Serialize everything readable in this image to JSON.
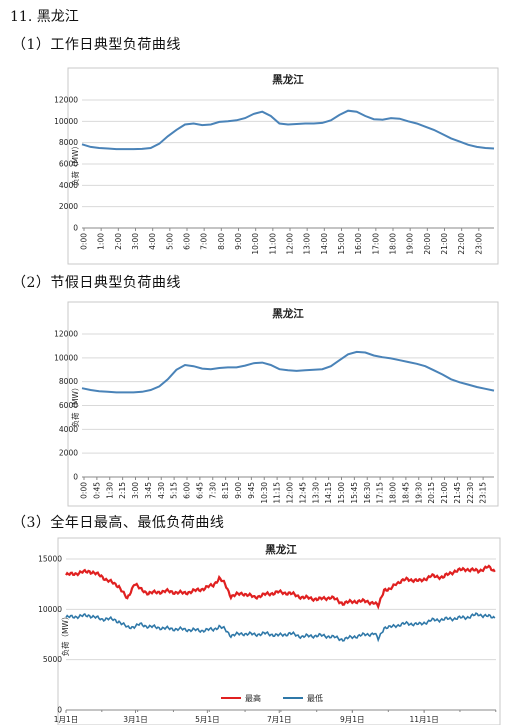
{
  "page": {
    "heading": "11. 黑龙江",
    "sections": [
      "（1）工作日典型负荷曲线",
      "（2）节假日典型负荷曲线",
      "（3）全年日最高、最低负荷曲线"
    ]
  },
  "chart_data": [
    {
      "type": "line",
      "title": "黑龙江",
      "ylabel": "负荷（MW）",
      "xlabel": "",
      "ylim": [
        0,
        12000
      ],
      "yticks": [
        0,
        2000,
        4000,
        6000,
        8000,
        10000,
        12000
      ],
      "xtick_labels": [
        "0:00",
        "1:00",
        "2:00",
        "3:00",
        "4:00",
        "5:00",
        "6:00",
        "7:00",
        "8:00",
        "9:00",
        "10:00",
        "11:00",
        "12:00",
        "13:00",
        "14:00",
        "15:00",
        "16:00",
        "17:00",
        "18:00",
        "19:00",
        "20:00",
        "21:00",
        "22:00",
        "23:00"
      ],
      "grid": true,
      "color": "#4a83b8",
      "series": [
        {
          "x": [
            0,
            0.5,
            1,
            1.5,
            2,
            2.5,
            3,
            3.5,
            4,
            4.5,
            5,
            5.5,
            6,
            6.5,
            7,
            7.5,
            8,
            8.5,
            9,
            9.5,
            10,
            10.5,
            11,
            11.5,
            12,
            12.5,
            13,
            13.5,
            14,
            14.5,
            15,
            15.5,
            16,
            16.5,
            17,
            17.5,
            18,
            18.5,
            19,
            19.5,
            20,
            20.5,
            21,
            21.5,
            22,
            22.5,
            23,
            23.5,
            24
          ],
          "values": [
            7850,
            7600,
            7500,
            7450,
            7400,
            7400,
            7400,
            7420,
            7500,
            7900,
            8600,
            9200,
            9700,
            9800,
            9650,
            9700,
            9950,
            10000,
            10100,
            10300,
            10700,
            10900,
            10500,
            9800,
            9700,
            9750,
            9800,
            9800,
            9850,
            10100,
            10600,
            11000,
            10900,
            10500,
            10200,
            10150,
            10300,
            10250,
            10000,
            9800,
            9500,
            9200,
            8800,
            8400,
            8100,
            7800,
            7600,
            7500,
            7450
          ]
        }
      ]
    },
    {
      "type": "line",
      "title": "黑龙江",
      "ylabel": "负荷（MW）",
      "xlabel": "",
      "ylim": [
        0,
        12000
      ],
      "yticks": [
        0,
        2000,
        4000,
        6000,
        8000,
        10000,
        12000
      ],
      "xtick_labels": [
        "0:00",
        "0:45",
        "1:30",
        "2:15",
        "3:00",
        "3:45",
        "4:30",
        "5:15",
        "6:00",
        "6:45",
        "7:30",
        "8:15",
        "9:00",
        "9:45",
        "10:30",
        "11:15",
        "12:00",
        "12:45",
        "13:30",
        "14:15",
        "15:00",
        "15:45",
        "16:30",
        "17:15",
        "18:00",
        "18:45",
        "19:30",
        "20:15",
        "21:00",
        "21:45",
        "22:30",
        "23:15"
      ],
      "grid": true,
      "color": "#4a83b8",
      "series": [
        {
          "x": [
            0,
            0.5,
            1,
            1.5,
            2,
            2.5,
            3,
            3.5,
            4,
            4.5,
            5,
            5.5,
            6,
            6.5,
            7,
            7.5,
            8,
            8.5,
            9,
            9.5,
            10,
            10.5,
            11,
            11.5,
            12,
            12.5,
            13,
            13.5,
            14,
            14.5,
            15,
            15.5,
            16,
            16.5,
            17,
            17.5,
            18,
            18.5,
            19,
            19.5,
            20,
            20.5,
            21,
            21.5,
            22,
            22.5,
            23,
            23.5,
            24
          ],
          "values": [
            7450,
            7300,
            7200,
            7150,
            7100,
            7100,
            7100,
            7150,
            7300,
            7600,
            8200,
            9000,
            9400,
            9300,
            9100,
            9050,
            9150,
            9200,
            9200,
            9350,
            9550,
            9600,
            9400,
            9050,
            8950,
            8900,
            8950,
            9000,
            9050,
            9300,
            9800,
            10300,
            10500,
            10450,
            10200,
            10050,
            9950,
            9800,
            9650,
            9500,
            9300,
            8950,
            8600,
            8200,
            7950,
            7750,
            7550,
            7400,
            7250
          ]
        }
      ]
    },
    {
      "type": "line",
      "title": "黑龙江",
      "ylabel": "负荷（MW）",
      "xlabel": "",
      "ylim": [
        0,
        15000
      ],
      "yticks": [
        0,
        5000,
        10000,
        15000
      ],
      "xtick_labels": [
        "1月1日",
        "3月1日",
        "5月1日",
        "7月1日",
        "9月1日",
        "11月1日"
      ],
      "xtick_days": [
        0,
        59,
        120,
        181,
        243,
        304
      ],
      "grid": true,
      "legend": "bottom",
      "series": [
        {
          "name": "最高",
          "color": "#e02020",
          "x": [
            0,
            10,
            20,
            30,
            35,
            45,
            52,
            58,
            63,
            70,
            85,
            100,
            115,
            125,
            130,
            135,
            140,
            150,
            160,
            170,
            180,
            190,
            200,
            215,
            225,
            235,
            245,
            255,
            262,
            265,
            270,
            275,
            280,
            290,
            300,
            310,
            320,
            330,
            340,
            350,
            358,
            364
          ],
          "values": [
            13400,
            13600,
            13800,
            13300,
            12900,
            12300,
            11000,
            12600,
            12000,
            11600,
            11800,
            11600,
            12000,
            12400,
            13100,
            12500,
            11300,
            11600,
            11200,
            11500,
            11700,
            11600,
            11200,
            11000,
            11200,
            10600,
            10800,
            10800,
            10600,
            10300,
            12000,
            11900,
            12600,
            13000,
            12800,
            13300,
            13200,
            13800,
            14000,
            13800,
            14200,
            13800
          ]
        },
        {
          "name": "最低",
          "color": "#2f78a8",
          "x": [
            0,
            10,
            20,
            30,
            35,
            45,
            52,
            58,
            63,
            70,
            85,
            100,
            115,
            125,
            130,
            135,
            140,
            150,
            160,
            170,
            180,
            190,
            200,
            215,
            225,
            235,
            245,
            255,
            262,
            265,
            270,
            275,
            280,
            290,
            300,
            310,
            320,
            330,
            340,
            350,
            358,
            364
          ],
          "values": [
            9200,
            9300,
            9400,
            9000,
            9100,
            8800,
            8200,
            8300,
            8500,
            8300,
            8100,
            8000,
            7900,
            8000,
            8300,
            8000,
            7400,
            7600,
            7500,
            7600,
            7400,
            7600,
            7300,
            7400,
            7300,
            7000,
            7300,
            7500,
            7600,
            7000,
            8200,
            8200,
            8400,
            8600,
            8500,
            8900,
            9000,
            9100,
            9200,
            9500,
            9300,
            9200
          ]
        }
      ]
    }
  ]
}
